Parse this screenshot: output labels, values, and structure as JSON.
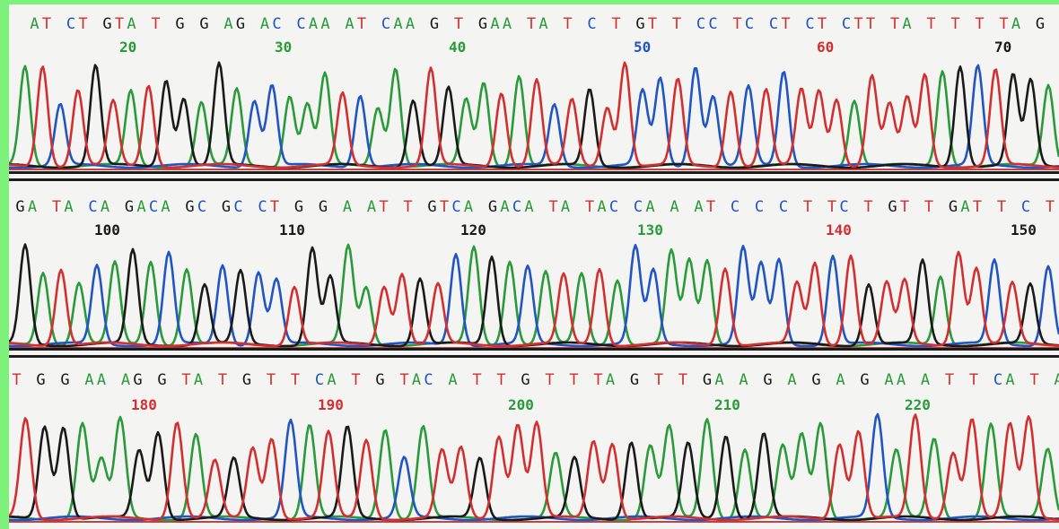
{
  "chart_data": {
    "type": "line",
    "title": "",
    "xlabel": "",
    "ylabel": "",
    "colors": {
      "A": "#2a9a3a",
      "C": "#2255c4",
      "G": "#1a1a1a",
      "T": "#d23030"
    },
    "rows": [
      {
        "sequence": "AT CT GTA T G G AG AC CAA AT CAA G T GAA TA T C T GT T CC TC CT CT CTT TA T T T TA G C TG G A",
        "positions": [
          {
            "label": "20",
            "color": "#2a9a3a"
          },
          {
            "label": "30",
            "color": "#2a9a3a"
          },
          {
            "label": "40",
            "color": "#2a9a3a"
          },
          {
            "label": "50",
            "color": "#2255c4"
          },
          {
            "label": "60",
            "color": "#d23030"
          },
          {
            "label": "70",
            "color": "#1a1a1a"
          }
        ]
      },
      {
        "sequence": "GA TA CA GACA GC GC CT G G A AT T GTCA GACA TA TAC CA A AT C C C T TC T GT T GAT T C T GC",
        "positions": [
          {
            "label": "100",
            "color": "#1a1a1a"
          },
          {
            "label": "110",
            "color": "#1a1a1a"
          },
          {
            "label": "120",
            "color": "#1a1a1a"
          },
          {
            "label": "130",
            "color": "#2a9a3a"
          },
          {
            "label": "140",
            "color": "#d23030"
          },
          {
            "label": "150",
            "color": "#1a1a1a"
          }
        ]
      },
      {
        "sequence": "T G G AA AG G TA T G T T CA T G TAC A T T G T T TA G T T GA A G A G A G AA A T T CA T A T TA T TA",
        "positions": [
          {
            "label": "180",
            "color": "#d23030"
          },
          {
            "label": "190",
            "color": "#d23030"
          },
          {
            "label": "200",
            "color": "#2a9a3a"
          },
          {
            "label": "210",
            "color": "#2a9a3a"
          },
          {
            "label": "220",
            "color": "#2a9a3a"
          }
        ]
      }
    ]
  }
}
